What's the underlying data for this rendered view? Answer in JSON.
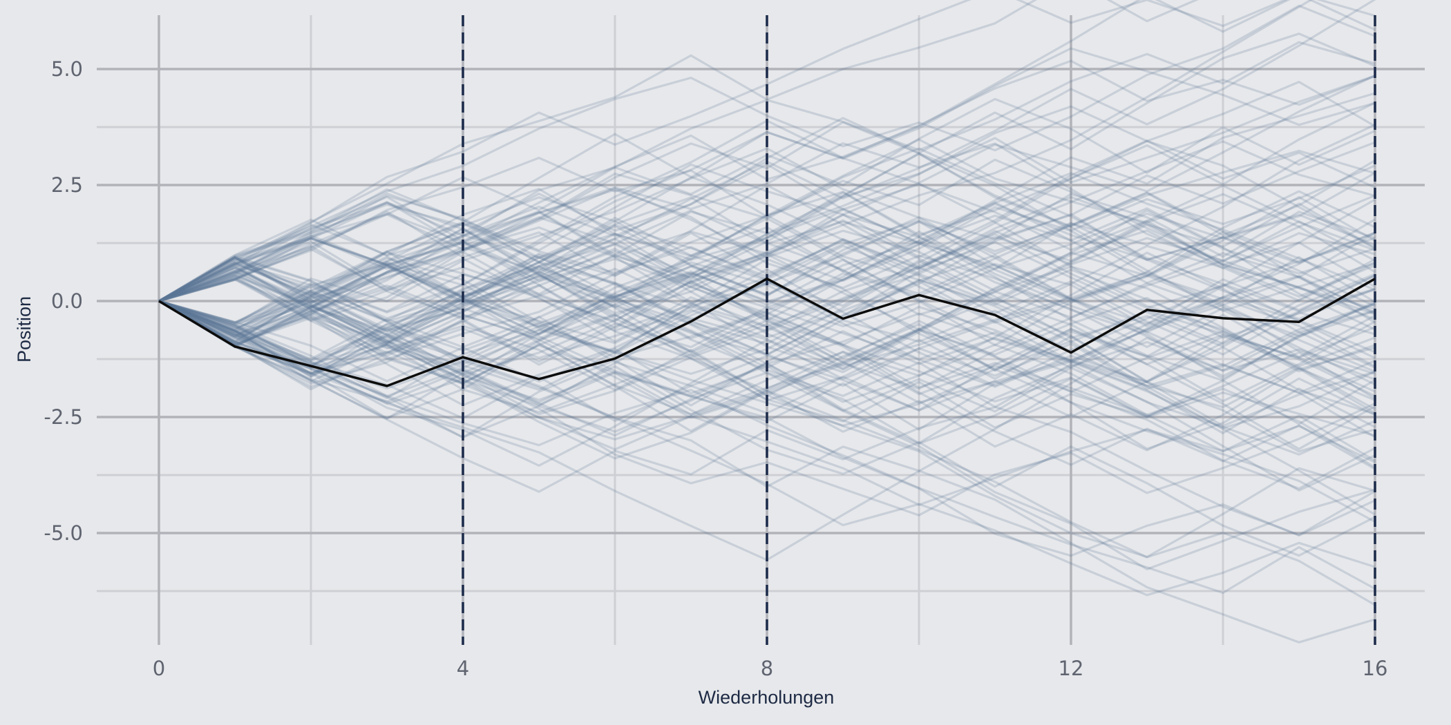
{
  "chart_data": {
    "type": "line",
    "title": "",
    "xlabel": "Wiederholungen",
    "ylabel": "Position",
    "xlim": [
      -0.8,
      16.8
    ],
    "ylim": [
      -7.5,
      6.1
    ],
    "x_ticks": [
      0,
      4,
      8,
      12,
      16
    ],
    "x_tick_labels": [
      "0",
      "4",
      "8",
      "12",
      "16"
    ],
    "y_ticks": [
      5.0,
      2.5,
      0.0,
      -2.5,
      -5.0
    ],
    "y_tick_labels": [
      "5.0",
      "2.5",
      "0.0",
      "-2.5",
      "-5.0"
    ],
    "x_minor_gridlines": [
      2,
      6,
      10,
      14
    ],
    "y_minor_gridlines": [
      3.75,
      1.25,
      -1.25,
      -3.75,
      -6.25
    ],
    "vertical_reference_lines": [
      4,
      8,
      16
    ],
    "grid": true,
    "legend": "none",
    "x": [
      0,
      1,
      2,
      3,
      4,
      5,
      6,
      7,
      8,
      9,
      10,
      11,
      12,
      13,
      14,
      15,
      16
    ],
    "highlight_series": {
      "values": [
        0,
        -0.98,
        -1.4,
        -1.83,
        -1.21,
        -1.68,
        -1.24,
        -0.44,
        0.48,
        -0.38,
        0.13,
        -0.3,
        -1.11,
        -0.19,
        -0.37,
        -0.45,
        0.48
      ]
    },
    "background_paths": {
      "count": 120,
      "steps_per_path": 16,
      "increments": "each step ~ 0.5-1.0, random sign",
      "color": "#5c7594",
      "opacity": 0.22
    }
  },
  "colors": {
    "background": "#e7e8eb",
    "major_grid": "#b1b3b9",
    "minor_grid": "#cdcfd4",
    "background_paths": "#5c7594",
    "highlight_path": "#0d0d0d",
    "reference_line": "#1c2b4a",
    "tick_label": "#5f6470",
    "axis_title": "#1d2a44"
  }
}
